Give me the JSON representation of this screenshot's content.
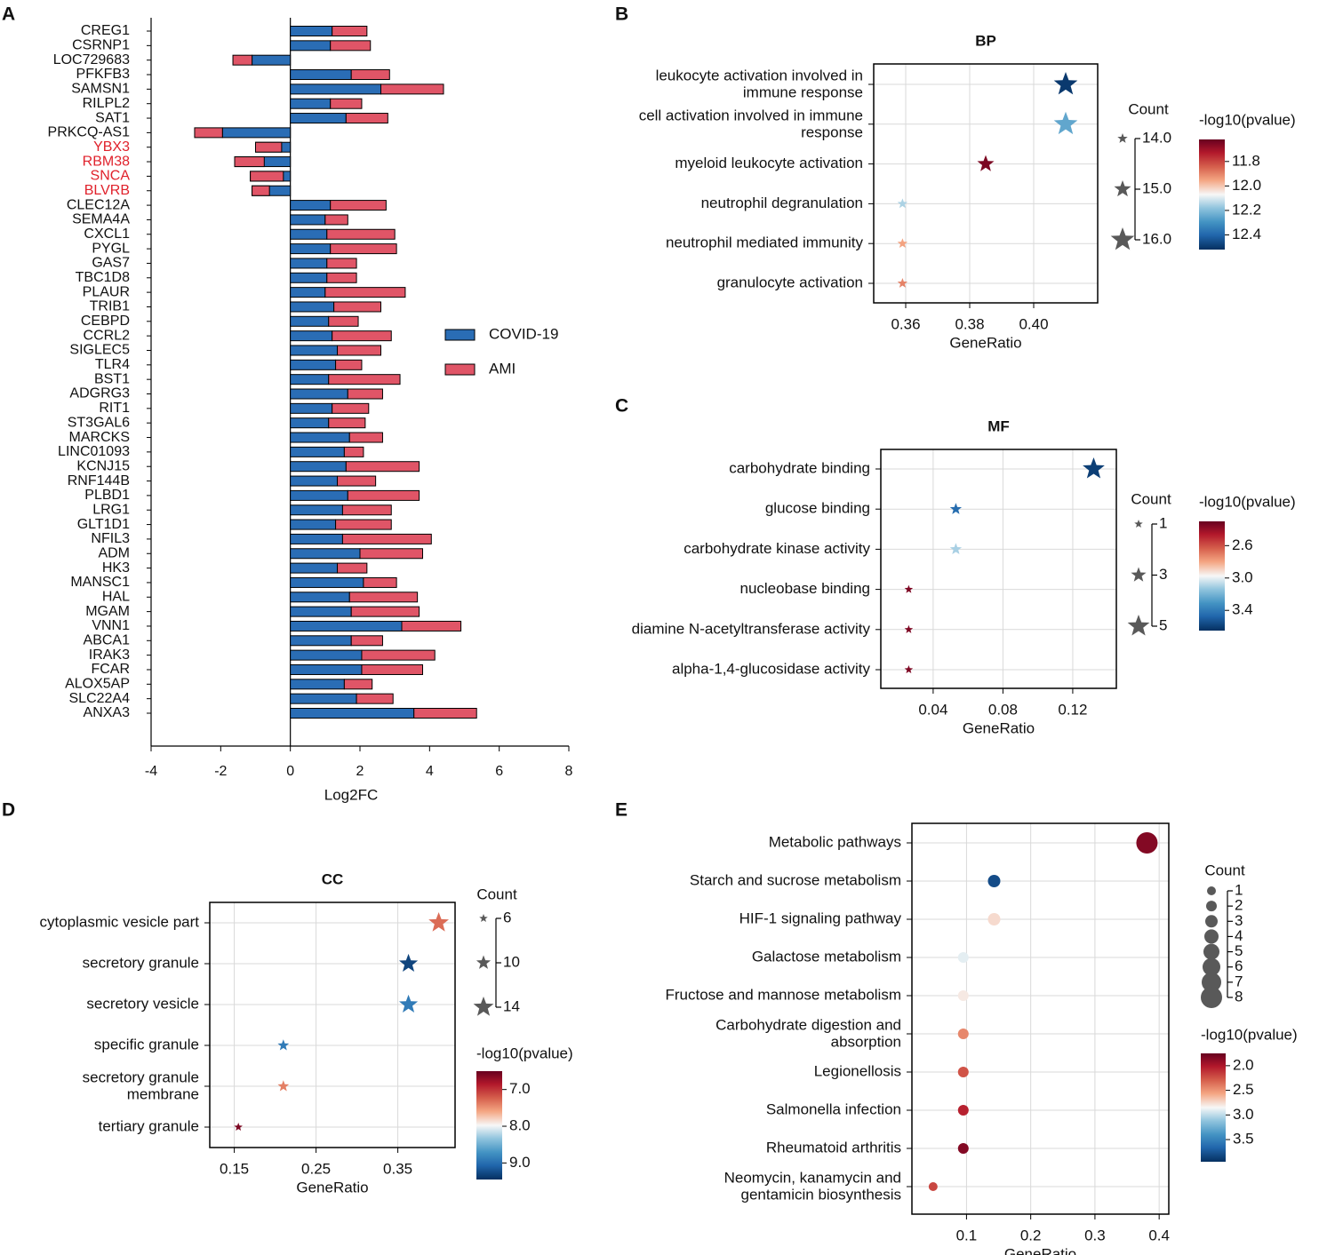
{
  "colors": {
    "covid": "#2a6db5",
    "ami": "#e05567",
    "grid": "#d9d9d9",
    "size_gray": "#595959",
    "highlight_label": "#e0212b"
  },
  "panel_labels": {
    "A": "A",
    "B": "B",
    "C": "C",
    "D": "D",
    "E": "E"
  },
  "chart_data": [
    {
      "panel": "A",
      "type": "bar",
      "stacked": true,
      "orientation": "horizontal",
      "xlabel": "Log2FC",
      "xlim": [
        -4,
        8
      ],
      "xticks": [
        -4,
        -2,
        0,
        2,
        4,
        6,
        8
      ],
      "legend": {
        "position": "right",
        "entries": [
          "COVID-19",
          "AMI"
        ]
      },
      "highlighted_categories": [
        "YBX3",
        "RBM38",
        "SNCA",
        "BLVRB"
      ],
      "categories": [
        "CREG1",
        "CSRNP1",
        "LOC729683",
        "PFKFB3",
        "SAMSN1",
        "RILPL2",
        "SAT1",
        "PRKCQ-AS1",
        "YBX3",
        "RBM38",
        "SNCA",
        "BLVRB",
        "CLEC12A",
        "SEMA4A",
        "CXCL1",
        "PYGL",
        "GAS7",
        "TBC1D8",
        "PLAUR",
        "TRIB1",
        "CEBPD",
        "CCRL2",
        "SIGLEC5",
        "TLR4",
        "BST1",
        "ADGRG3",
        "RIT1",
        "ST3GAL6",
        "MARCKS",
        "LINC01093",
        "KCNJ15",
        "RNF144B",
        "PLBD1",
        "LRG1",
        "GLT1D1",
        "NFIL3",
        "ADM",
        "HK3",
        "MANSC1",
        "HAL",
        "MGAM",
        "VNN1",
        "ABCA1",
        "IRAK3",
        "FCAR",
        "ALOX5AP",
        "SLC22A4",
        "ANXA3"
      ],
      "series": [
        {
          "name": "COVID-19",
          "values": [
            1.2,
            1.15,
            -1.1,
            1.75,
            2.6,
            1.15,
            1.6,
            -1.95,
            -1.0,
            -1.6,
            -1.15,
            -1.1,
            1.15,
            1.0,
            1.05,
            1.15,
            1.05,
            1.05,
            1.0,
            1.25,
            1.1,
            1.2,
            1.35,
            1.3,
            1.1,
            1.65,
            1.2,
            1.1,
            1.7,
            1.55,
            1.6,
            1.35,
            1.65,
            1.5,
            1.3,
            1.5,
            2.0,
            1.35,
            2.1,
            1.7,
            1.75,
            3.2,
            1.75,
            2.05,
            2.05,
            1.55,
            1.9,
            3.55
          ]
        },
        {
          "name": "AMI",
          "values": [
            1.0,
            1.15,
            -0.55,
            1.1,
            1.8,
            0.9,
            1.2,
            -0.8,
            0.75,
            0.85,
            0.95,
            0.5,
            1.6,
            0.65,
            1.95,
            1.9,
            0.85,
            0.85,
            2.3,
            1.35,
            0.85,
            1.7,
            1.25,
            0.75,
            2.05,
            1.0,
            1.05,
            1.05,
            0.95,
            0.55,
            2.1,
            1.1,
            2.05,
            1.4,
            1.6,
            2.55,
            1.8,
            0.85,
            0.95,
            1.95,
            1.95,
            1.7,
            0.9,
            2.1,
            1.75,
            0.8,
            1.05,
            1.8
          ]
        }
      ]
    },
    {
      "panel": "B",
      "type": "scatter",
      "title": "BP",
      "xlabel": "GeneRatio",
      "xlim": [
        0.35,
        0.42
      ],
      "xticks": [
        0.36,
        0.38,
        0.4
      ],
      "xtick_labels": [
        "0.36",
        "0.38",
        "0.40"
      ],
      "marker": "star",
      "categories": [
        "leukocyte activation involved in immune response",
        "cell activation involved in immune response",
        "myeloid leukocyte activation",
        "neutrophil degranulation",
        "neutrophil mediated immunity",
        "granulocyte activation"
      ],
      "x": [
        0.41,
        0.41,
        0.385,
        0.359,
        0.359,
        0.359
      ],
      "count": [
        16,
        16,
        15,
        14,
        14,
        14
      ],
      "color_value": [
        12.5,
        12.25,
        11.65,
        12.15,
        11.95,
        11.9
      ],
      "size_legend": {
        "title": "Count",
        "values": [
          14.0,
          15.0,
          16.0
        ],
        "labels": [
          "14.0",
          "15.0",
          "16.0"
        ]
      },
      "color_legend": {
        "title": "-log10(pvalue)",
        "range": [
          11.62,
          12.52
        ],
        "ticks": [
          11.8,
          12.0,
          12.2,
          12.4
        ],
        "tick_labels": [
          "11.8",
          "12.0",
          "12.2",
          "12.4"
        ]
      }
    },
    {
      "panel": "C",
      "type": "scatter",
      "title": "MF",
      "xlabel": "GeneRatio",
      "xlim": [
        0.01,
        0.145
      ],
      "xticks": [
        0.04,
        0.08,
        0.12
      ],
      "xtick_labels": [
        "0.04",
        "0.08",
        "0.12"
      ],
      "marker": "star",
      "categories": [
        "carbohydrate binding",
        "glucose binding",
        "carbohydrate kinase activity",
        "nucleobase binding",
        "diamine N-acetyltransferase activity",
        "alpha-1,4-glucosidase activity"
      ],
      "x": [
        0.132,
        0.053,
        0.053,
        0.026,
        0.026,
        0.026
      ],
      "count": [
        5,
        2,
        2,
        1,
        1,
        1
      ],
      "color_value": [
        3.6,
        3.45,
        3.1,
        2.35,
        2.35,
        2.35
      ],
      "size_legend": {
        "title": "Count",
        "values": [
          1,
          3,
          5
        ],
        "labels": [
          "1",
          "3",
          "5"
        ]
      },
      "color_legend": {
        "title": "-log10(pvalue)",
        "range": [
          2.3,
          3.65
        ],
        "ticks": [
          2.6,
          3.0,
          3.4
        ],
        "tick_labels": [
          "2.6",
          "3.0",
          "3.4"
        ]
      }
    },
    {
      "panel": "D",
      "type": "scatter",
      "title": "CC",
      "xlabel": "GeneRatio",
      "xlim": [
        0.12,
        0.42
      ],
      "xticks": [
        0.15,
        0.25,
        0.35
      ],
      "xtick_labels": [
        "0.15",
        "0.25",
        "0.35"
      ],
      "marker": "star",
      "categories": [
        "cytoplasmic vesicle part",
        "secretory granule",
        "secretory vesicle",
        "specific granule",
        "secretory granule membrane",
        "tertiary granule"
      ],
      "x": [
        0.4,
        0.363,
        0.363,
        0.21,
        0.21,
        0.155
      ],
      "count": [
        14,
        13,
        13,
        8,
        8,
        6
      ],
      "color_value": [
        7.3,
        9.3,
        8.9,
        8.9,
        7.4,
        6.6
      ],
      "size_legend": {
        "title": "Count",
        "values": [
          6,
          10,
          14
        ],
        "labels": [
          "6",
          "10",
          "14"
        ]
      },
      "color_legend": {
        "title": "-log10(pvalue)",
        "range": [
          6.5,
          9.45
        ],
        "ticks": [
          7.0,
          8.0,
          9.0
        ],
        "tick_labels": [
          "7.0",
          "8.0",
          "9.0"
        ]
      }
    },
    {
      "panel": "E",
      "type": "scatter",
      "xlabel": "GeneRatio",
      "xlim": [
        0.015,
        0.415
      ],
      "xticks": [
        0.1,
        0.2,
        0.3,
        0.4
      ],
      "xtick_labels": [
        "0.1",
        "0.2",
        "0.3",
        "0.4"
      ],
      "marker": "circle",
      "categories": [
        "Metabolic pathways",
        "Starch and sucrose metabolism",
        "HIF-1 signaling pathway",
        "Galactose metabolism",
        "Fructose and mannose metabolism",
        "Carbohydrate digestion and absorption",
        "Legionellosis",
        "Salmonella infection",
        "Rheumatoid arthritis",
        "Neomycin, kanamycin and gentamicin biosynthesis"
      ],
      "x": [
        0.381,
        0.143,
        0.143,
        0.095,
        0.095,
        0.095,
        0.095,
        0.095,
        0.095,
        0.048
      ],
      "count": [
        8,
        3,
        3,
        2,
        2,
        2,
        2,
        2,
        2,
        1
      ],
      "color_value": [
        1.85,
        3.8,
        2.75,
        2.9,
        2.8,
        2.45,
        2.25,
        2.05,
        1.85,
        2.2
      ],
      "size_legend": {
        "title": "Count",
        "values": [
          1,
          2,
          3,
          4,
          5,
          6,
          7,
          8
        ],
        "labels": [
          "1",
          "2",
          "3",
          "4",
          "5",
          "6",
          "7",
          "8"
        ]
      },
      "color_legend": {
        "title": "-log10(pvalue)",
        "range": [
          1.75,
          3.95
        ],
        "ticks": [
          2.0,
          2.5,
          3.0,
          3.5
        ],
        "tick_labels": [
          "2.0",
          "2.5",
          "3.0",
          "3.5"
        ]
      }
    }
  ]
}
